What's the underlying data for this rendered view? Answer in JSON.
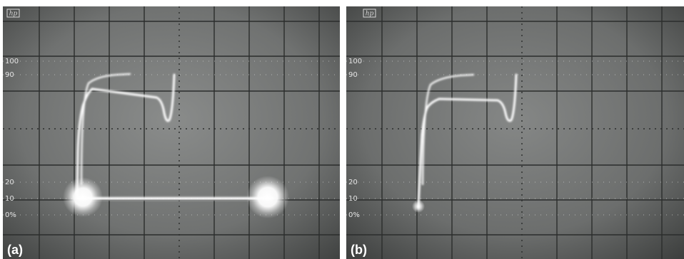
{
  "panels": [
    {
      "caption": "(a)",
      "logo": "hp",
      "scale_labels": [
        "100",
        "90",
        "10",
        "20",
        "0%"
      ],
      "scale_labels_ordered": [
        "100",
        "90",
        "20",
        "10",
        "0%"
      ]
    },
    {
      "caption": "(b)",
      "logo": "hp",
      "scale_labels_ordered": [
        "100",
        "90",
        "20",
        "10",
        "0%"
      ]
    }
  ],
  "colors": {
    "screen": "#6f7170",
    "grid": "#2b2d2c",
    "trace": "#ffffff",
    "graticule_text": "#e4e4e4"
  }
}
